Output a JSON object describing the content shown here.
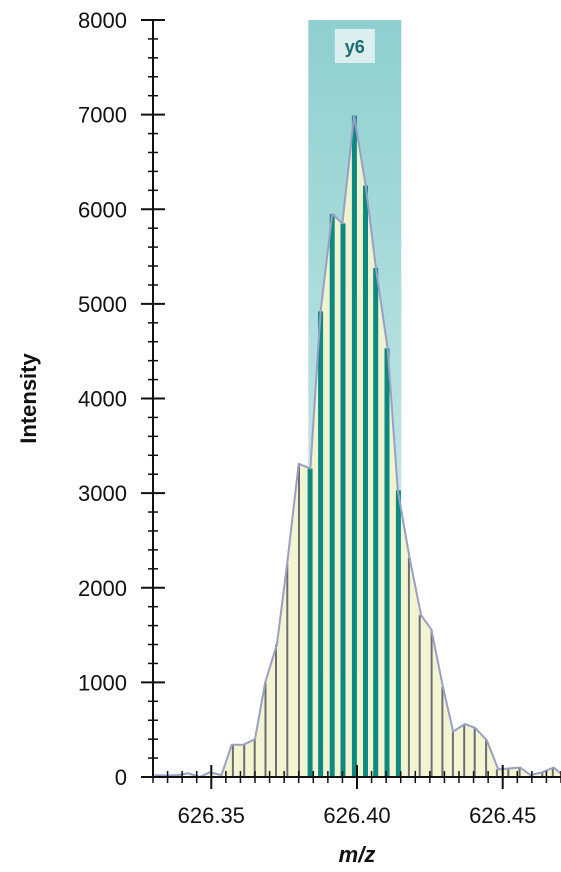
{
  "chart_data": {
    "type": "area",
    "title": "",
    "xlabel": "m/z",
    "ylabel": "Intensity",
    "xlim": [
      626.33,
      626.47
    ],
    "ylim": [
      0,
      8000
    ],
    "x_ticks": [
      {
        "value": 626.35,
        "label": "626.35"
      },
      {
        "value": 626.4,
        "label": "626.40"
      },
      {
        "value": 626.45,
        "label": "626.45"
      }
    ],
    "y_ticks": [
      {
        "value": 0,
        "label": "0"
      },
      {
        "value": 1000,
        "label": "1000"
      },
      {
        "value": 2000,
        "label": "2000"
      },
      {
        "value": 3000,
        "label": "3000"
      },
      {
        "value": 4000,
        "label": "4000"
      },
      {
        "value": 5000,
        "label": "5000"
      },
      {
        "value": 6000,
        "label": "6000"
      },
      {
        "value": 7000,
        "label": "7000"
      },
      {
        "value": 8000,
        "label": "8000"
      }
    ],
    "y_minor_step": 200,
    "x_minor_step": 0.005,
    "region": {
      "label": "y6",
      "x_start": 626.3833,
      "x_end": 626.4152
    },
    "profile": {
      "x": [
        626.3305,
        626.3345,
        626.3385,
        626.342,
        626.346,
        626.3495,
        626.3535,
        626.357,
        626.361,
        626.365,
        626.3685,
        626.3725,
        626.376,
        626.38,
        626.384,
        626.3875,
        626.3915,
        626.395,
        626.399,
        626.403,
        626.4065,
        626.4105,
        626.414,
        626.418,
        626.422,
        626.4255,
        626.4295,
        626.433,
        626.437,
        626.4405,
        626.4445,
        626.4485,
        626.452,
        626.456,
        626.4595,
        626.4635,
        626.4675,
        626.4705
      ],
      "y": [
        20,
        15,
        20,
        40,
        0,
        50,
        20,
        340,
        340,
        400,
        1000,
        1400,
        2250,
        3310,
        3260,
        4920,
        5950,
        5850,
        6990,
        6250,
        5380,
        4530,
        3030,
        2320,
        1710,
        1560,
        950,
        480,
        560,
        520,
        390,
        80,
        90,
        100,
        20,
        50,
        100,
        20
      ]
    },
    "bars": [
      {
        "x": 626.3574,
        "y": 340
      },
      {
        "x": 626.3613,
        "y": 340
      },
      {
        "x": 626.3649,
        "y": 400
      },
      {
        "x": 626.3686,
        "y": 1000
      },
      {
        "x": 626.3722,
        "y": 1400
      },
      {
        "x": 626.3761,
        "y": 2250
      },
      {
        "x": 626.3801,
        "y": 3310
      },
      {
        "x": 626.3839,
        "y": 3260
      },
      {
        "x": 626.3875,
        "y": 4920
      },
      {
        "x": 626.3915,
        "y": 5950
      },
      {
        "x": 626.3952,
        "y": 5850
      },
      {
        "x": 626.3991,
        "y": 6990
      },
      {
        "x": 626.4029,
        "y": 6250
      },
      {
        "x": 626.4064,
        "y": 5380
      },
      {
        "x": 626.4103,
        "y": 4530
      },
      {
        "x": 626.4142,
        "y": 3030
      },
      {
        "x": 626.4178,
        "y": 2320
      },
      {
        "x": 626.4215,
        "y": 1710
      },
      {
        "x": 626.4256,
        "y": 1560
      },
      {
        "x": 626.4293,
        "y": 950
      },
      {
        "x": 626.4329,
        "y": 480
      },
      {
        "x": 626.4368,
        "y": 560
      },
      {
        "x": 626.4404,
        "y": 520
      },
      {
        "x": 626.4443,
        "y": 390
      },
      {
        "x": 626.448,
        "y": 80
      },
      {
        "x": 626.4519,
        "y": 90
      },
      {
        "x": 626.4558,
        "y": 100
      },
      {
        "x": 626.4597,
        "y": 20
      },
      {
        "x": 626.4636,
        "y": 50
      },
      {
        "x": 626.4672,
        "y": 100
      },
      {
        "x": 626.4705,
        "y": 20
      }
    ],
    "colors": {
      "area_fill": "#f2f3cf",
      "profile_line": "#9a9fc4",
      "outside_bar": "#6e6e72",
      "inside_bar": "#0c8a82",
      "region_top": "#8fcfcf",
      "region_bottom": "#dff2f2",
      "region_label_bg": "#e7f4f4",
      "axis": "#111111"
    }
  }
}
